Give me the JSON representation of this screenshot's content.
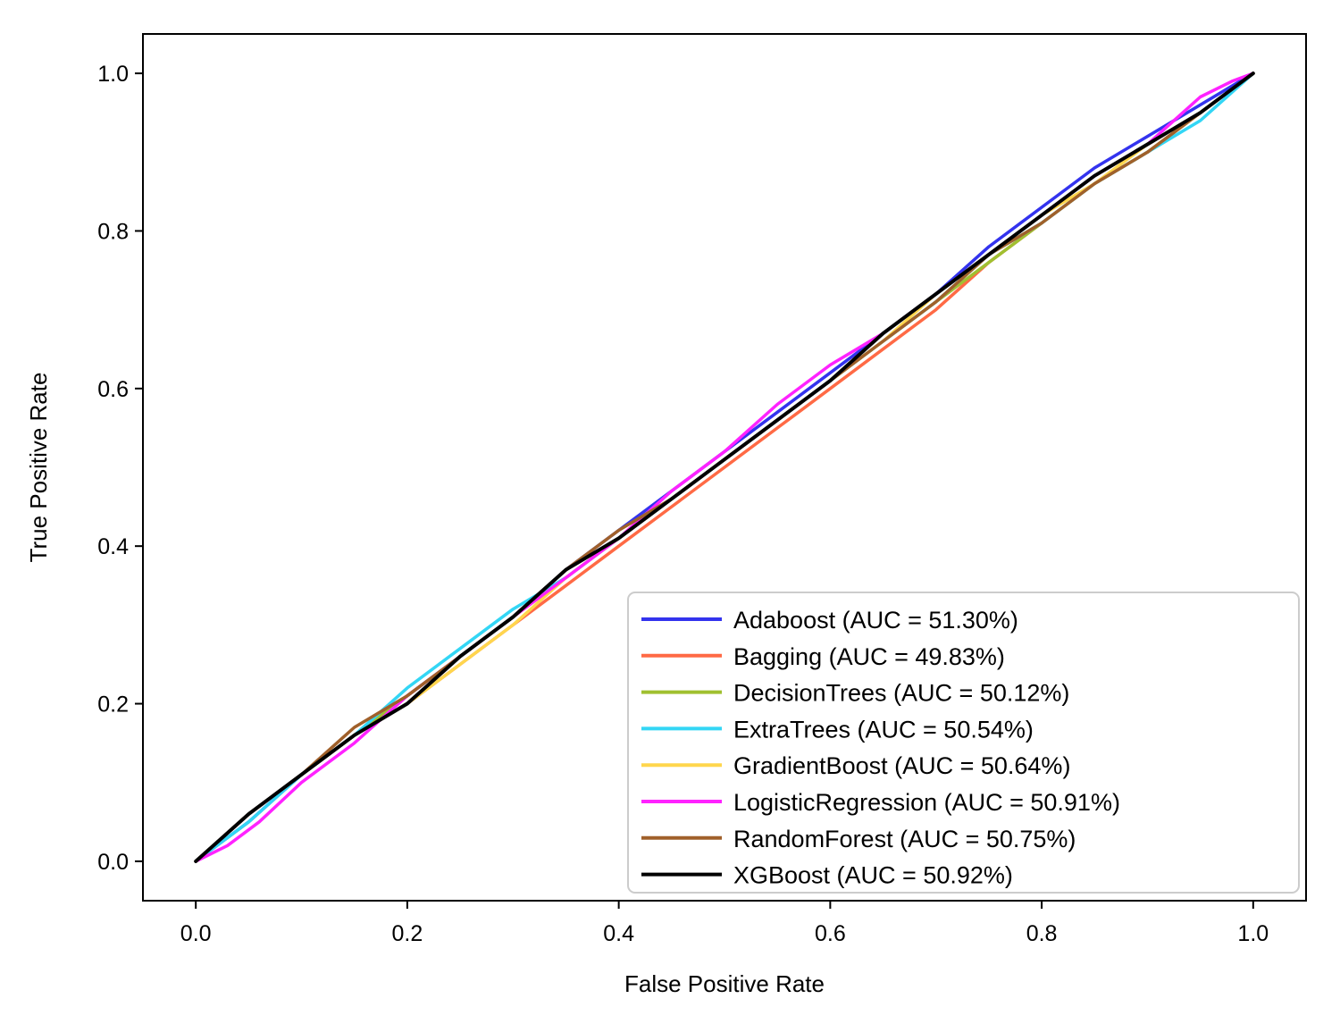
{
  "chart_data": {
    "type": "line",
    "title": "",
    "xlabel": "False Positive Rate",
    "ylabel": "True Positive Rate",
    "xlim": [
      -0.05,
      1.05
    ],
    "ylim": [
      -0.05,
      1.05
    ],
    "xticks": [
      0.0,
      0.2,
      0.4,
      0.6,
      0.8,
      1.0
    ],
    "yticks": [
      0.0,
      0.2,
      0.4,
      0.6,
      0.8,
      1.0
    ],
    "xtick_labels": [
      "0.0",
      "0.2",
      "0.4",
      "0.6",
      "0.8",
      "1.0"
    ],
    "ytick_labels": [
      "0.0",
      "0.2",
      "0.4",
      "0.6",
      "0.8",
      "1.0"
    ],
    "grid": false,
    "legend_position": "lower-right",
    "series": [
      {
        "name": "Adaboost (AUC = 51.30%)",
        "color": "#3333ee",
        "x": [
          0.0,
          0.05,
          0.1,
          0.15,
          0.2,
          0.25,
          0.3,
          0.35,
          0.4,
          0.45,
          0.5,
          0.55,
          0.6,
          0.65,
          0.7,
          0.75,
          0.8,
          0.85,
          0.9,
          0.95,
          1.0
        ],
        "y": [
          0.0,
          0.05,
          0.11,
          0.16,
          0.21,
          0.26,
          0.31,
          0.37,
          0.42,
          0.47,
          0.52,
          0.57,
          0.62,
          0.67,
          0.72,
          0.78,
          0.83,
          0.88,
          0.92,
          0.96,
          1.0
        ]
      },
      {
        "name": "Bagging (AUC = 49.83%)",
        "color": "#ff6a45",
        "x": [
          0.0,
          0.05,
          0.1,
          0.15,
          0.2,
          0.25,
          0.3,
          0.35,
          0.4,
          0.45,
          0.5,
          0.55,
          0.6,
          0.65,
          0.7,
          0.75,
          0.8,
          0.85,
          0.9,
          0.95,
          1.0
        ],
        "y": [
          0.0,
          0.06,
          0.11,
          0.16,
          0.2,
          0.25,
          0.3,
          0.35,
          0.4,
          0.45,
          0.5,
          0.55,
          0.6,
          0.65,
          0.7,
          0.76,
          0.81,
          0.86,
          0.9,
          0.95,
          1.0
        ]
      },
      {
        "name": "DecisionTrees (AUC = 50.12%)",
        "color": "#a0c030",
        "x": [
          0.0,
          0.05,
          0.1,
          0.15,
          0.2,
          0.25,
          0.3,
          0.35,
          0.4,
          0.45,
          0.5,
          0.55,
          0.6,
          0.65,
          0.7,
          0.75,
          0.8,
          0.85,
          0.9,
          0.95,
          1.0
        ],
        "y": [
          0.0,
          0.06,
          0.11,
          0.16,
          0.21,
          0.26,
          0.31,
          0.36,
          0.41,
          0.46,
          0.51,
          0.56,
          0.61,
          0.66,
          0.71,
          0.76,
          0.81,
          0.86,
          0.9,
          0.95,
          1.0
        ]
      },
      {
        "name": "ExtraTrees (AUC = 50.54%)",
        "color": "#33d6f5",
        "x": [
          0.0,
          0.05,
          0.1,
          0.15,
          0.2,
          0.25,
          0.3,
          0.35,
          0.4,
          0.45,
          0.5,
          0.55,
          0.6,
          0.65,
          0.7,
          0.75,
          0.8,
          0.85,
          0.9,
          0.95,
          1.0
        ],
        "y": [
          0.0,
          0.05,
          0.11,
          0.16,
          0.22,
          0.27,
          0.32,
          0.36,
          0.41,
          0.46,
          0.51,
          0.56,
          0.61,
          0.66,
          0.71,
          0.77,
          0.81,
          0.86,
          0.9,
          0.94,
          1.0
        ]
      },
      {
        "name": "GradientBoost (AUC = 50.64%)",
        "color": "#ffd64d",
        "x": [
          0.0,
          0.05,
          0.1,
          0.15,
          0.2,
          0.25,
          0.3,
          0.35,
          0.4,
          0.45,
          0.5,
          0.55,
          0.6,
          0.65,
          0.7,
          0.75,
          0.8,
          0.85,
          0.9,
          0.95,
          1.0
        ],
        "y": [
          0.0,
          0.06,
          0.11,
          0.16,
          0.2,
          0.25,
          0.3,
          0.36,
          0.41,
          0.46,
          0.51,
          0.56,
          0.61,
          0.66,
          0.72,
          0.77,
          0.82,
          0.86,
          0.91,
          0.95,
          1.0
        ]
      },
      {
        "name": "LogisticRegression (AUC = 50.91%)",
        "color": "#ff22ff",
        "x": [
          0.0,
          0.03,
          0.06,
          0.1,
          0.15,
          0.2,
          0.25,
          0.3,
          0.35,
          0.4,
          0.45,
          0.5,
          0.55,
          0.6,
          0.65,
          0.7,
          0.75,
          0.8,
          0.85,
          0.9,
          0.95,
          0.98,
          1.0
        ],
        "y": [
          0.0,
          0.02,
          0.05,
          0.1,
          0.15,
          0.21,
          0.26,
          0.31,
          0.36,
          0.41,
          0.47,
          0.52,
          0.58,
          0.63,
          0.67,
          0.72,
          0.77,
          0.82,
          0.87,
          0.91,
          0.97,
          0.99,
          1.0
        ]
      },
      {
        "name": "RandomForest (AUC = 50.75%)",
        "color": "#a0602a",
        "x": [
          0.0,
          0.05,
          0.1,
          0.15,
          0.2,
          0.25,
          0.3,
          0.35,
          0.4,
          0.45,
          0.5,
          0.55,
          0.6,
          0.65,
          0.7,
          0.75,
          0.8,
          0.85,
          0.9,
          0.95,
          1.0
        ],
        "y": [
          0.0,
          0.06,
          0.11,
          0.17,
          0.21,
          0.26,
          0.31,
          0.37,
          0.42,
          0.46,
          0.51,
          0.56,
          0.61,
          0.66,
          0.71,
          0.77,
          0.81,
          0.86,
          0.9,
          0.95,
          1.0
        ]
      },
      {
        "name": "XGBoost (AUC = 50.92%)",
        "color": "#000000",
        "x": [
          0.0,
          0.05,
          0.1,
          0.15,
          0.2,
          0.25,
          0.3,
          0.35,
          0.4,
          0.45,
          0.5,
          0.55,
          0.6,
          0.65,
          0.7,
          0.75,
          0.8,
          0.85,
          0.9,
          0.95,
          1.0
        ],
        "y": [
          0.0,
          0.06,
          0.11,
          0.16,
          0.2,
          0.26,
          0.31,
          0.37,
          0.41,
          0.46,
          0.51,
          0.56,
          0.61,
          0.67,
          0.72,
          0.77,
          0.82,
          0.87,
          0.91,
          0.95,
          1.0
        ]
      }
    ]
  }
}
